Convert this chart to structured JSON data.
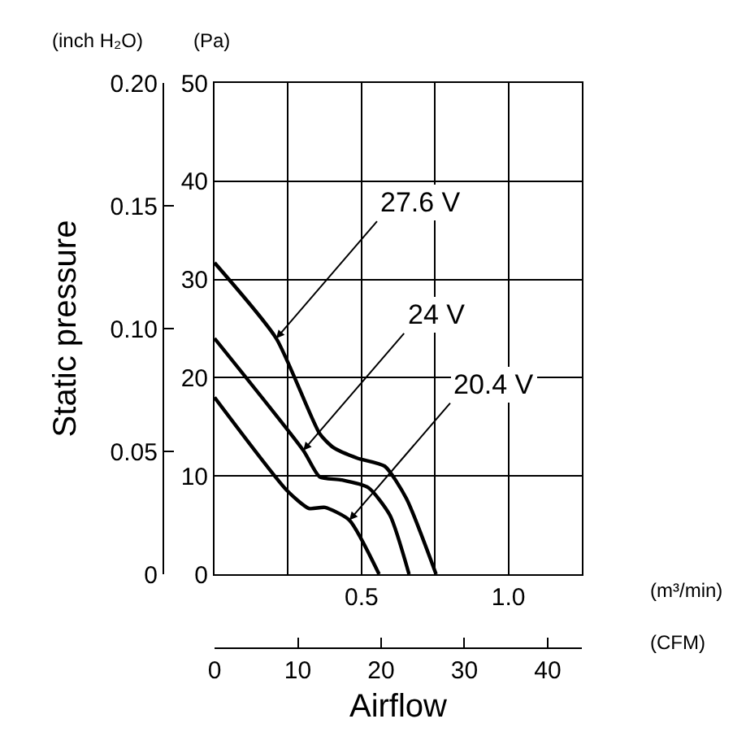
{
  "chart_data": {
    "type": "line",
    "xlabel": "Airflow",
    "ylabel": "Static pressure",
    "x": [
      0,
      0.21,
      0.358,
      0.404,
      0.487,
      0.579,
      0.653,
      0.754
    ],
    "series": [
      {
        "name": "27.6 V",
        "color": "#000000",
        "axis": "y2",
        "values": [
          31.7,
          24,
          14.3,
          12.9,
          11.8,
          11.0,
          7.7,
          0
        ]
      },
      {
        "name": "24 V",
        "color": "#000000",
        "axis": "y2",
        "x": [
          0,
          0.302,
          0.358,
          0.431,
          0.524,
          0.597,
          0.662
        ],
        "values": [
          24,
          12.6,
          9.9,
          9.6,
          8.8,
          6.0,
          0
        ]
      },
      {
        "name": "20.4 V",
        "color": "#000000",
        "axis": "y2",
        "x": [
          0,
          0.247,
          0.321,
          0.376,
          0.459,
          0.56
        ],
        "values": [
          18,
          8.5,
          6.7,
          6.8,
          5.5,
          0
        ]
      }
    ],
    "xlim": [
      0,
      1.25
    ],
    "xticks": [
      {
        "value": 0,
        "label": null
      },
      {
        "value": 0.25,
        "label": null
      },
      0.5,
      {
        "value": 0.75,
        "label": null
      },
      {
        "value": 1,
        "label": "1.0"
      },
      {
        "value": 1.25,
        "label": null
      }
    ],
    "ylim": [
      0,
      0.2
    ],
    "yticks": [
      0,
      0.05,
      {
        "value": 0.1,
        "label": "0.10"
      },
      0.15,
      {
        "value": 0.2,
        "label": "0.20"
      }
    ],
    "y2lim": [
      0,
      50
    ],
    "y2ticks": [
      0,
      10,
      20,
      30,
      40,
      50
    ],
    "x2lim": [
      0,
      44.1
    ],
    "x2ticks": [
      0,
      10,
      20,
      30,
      40
    ],
    "annotations": [
      "(inch H₂O)",
      "(Pa)",
      "(m³/min)",
      "(CFM)"
    ],
    "grid": true,
    "marker": "none",
    "line_style": "solid",
    "legend": false
  }
}
